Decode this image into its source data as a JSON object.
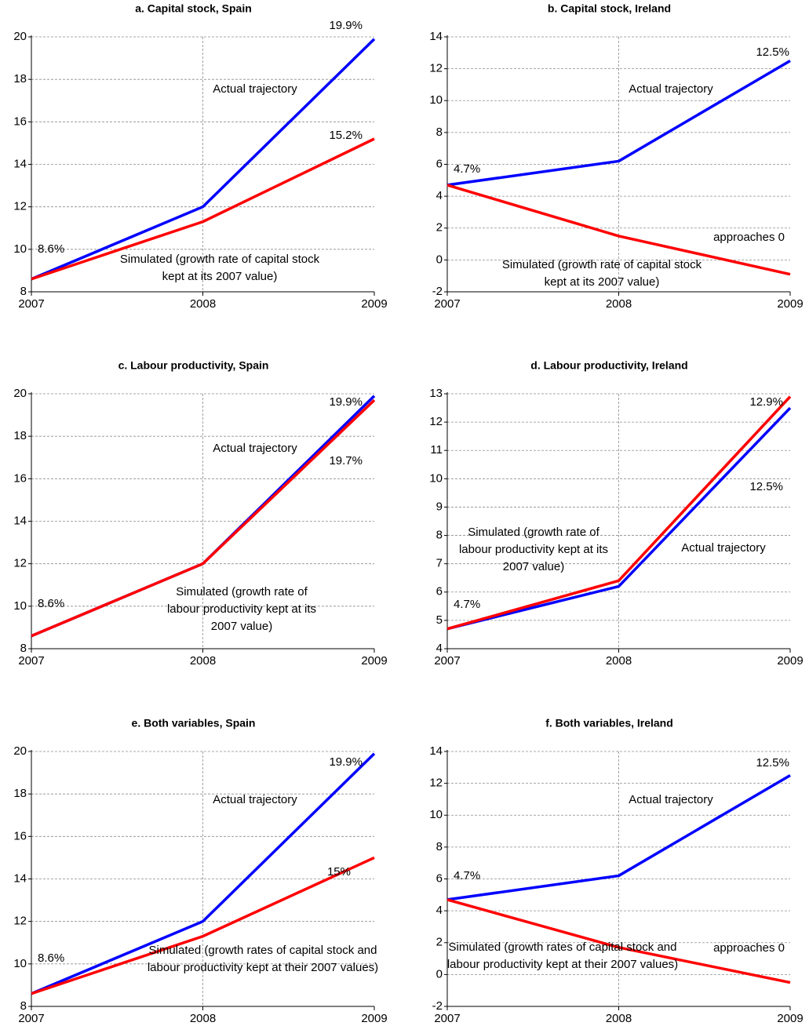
{
  "chart_data": [
    {
      "type": "line",
      "title": "a. Capital stock, Spain",
      "categories": [
        "2007",
        "2008",
        "2009"
      ],
      "ylim": [
        8,
        20
      ],
      "yticks": [
        8,
        10,
        12,
        14,
        16,
        18,
        20
      ],
      "grid": true,
      "series": [
        {
          "name": "Actual trajectory",
          "color": "#0000ff",
          "values": [
            8.6,
            12.0,
            19.9
          ],
          "value_labels": [
            "8.6%",
            null,
            "19.9%"
          ]
        },
        {
          "name": "Simulated (growth rate of capital stock kept at its 2007 value)",
          "color": "#ff0000",
          "values": [
            8.6,
            11.3,
            15.2
          ],
          "value_labels": [
            null,
            null,
            "15.2%"
          ]
        }
      ]
    },
    {
      "type": "line",
      "title": "b. Capital stock, Ireland",
      "categories": [
        "2007",
        "2008",
        "2009"
      ],
      "ylim": [
        -2,
        14
      ],
      "yticks": [
        -2,
        0,
        2,
        4,
        6,
        8,
        10,
        12,
        14
      ],
      "grid": true,
      "series": [
        {
          "name": "Actual trajectory",
          "color": "#0000ff",
          "values": [
            4.7,
            6.2,
            12.5
          ],
          "value_labels": [
            "4.7%",
            null,
            "12.5%"
          ]
        },
        {
          "name": "Simulated (growth rate of capital stock kept at its 2007 value)",
          "color": "#ff0000",
          "values": [
            4.7,
            1.5,
            -0.9
          ]
        }
      ],
      "annotations": [
        "approaches 0"
      ]
    },
    {
      "type": "line",
      "title": "c. Labour productivity, Spain",
      "categories": [
        "2007",
        "2008",
        "2009"
      ],
      "ylim": [
        8,
        20
      ],
      "yticks": [
        8,
        10,
        12,
        14,
        16,
        18,
        20
      ],
      "grid": true,
      "series": [
        {
          "name": "Actual trajectory",
          "color": "#0000ff",
          "values": [
            8.6,
            12.0,
            19.9
          ],
          "value_labels": [
            "8.6%",
            null,
            "19.9%"
          ]
        },
        {
          "name": "Simulated (growth rate of labour productivity kept at its 2007 value)",
          "color": "#ff0000",
          "values": [
            8.6,
            12.0,
            19.7
          ],
          "value_labels": [
            null,
            null,
            "19.7%"
          ]
        }
      ]
    },
    {
      "type": "line",
      "title": "d. Labour productivity, Ireland",
      "categories": [
        "2007",
        "2008",
        "2009"
      ],
      "ylim": [
        4,
        13
      ],
      "yticks": [
        4,
        5,
        6,
        7,
        8,
        9,
        10,
        11,
        12,
        13
      ],
      "grid": true,
      "series": [
        {
          "name": "Actual trajectory",
          "color": "#0000ff",
          "values": [
            4.7,
            6.2,
            12.5
          ],
          "value_labels": [
            "4.7%",
            null,
            "12.5%"
          ]
        },
        {
          "name": "Simulated (growth rate of labour productivity kept at its 2007 value)",
          "color": "#ff0000",
          "values": [
            4.7,
            6.4,
            12.9
          ],
          "value_labels": [
            null,
            null,
            "12.9%"
          ]
        }
      ]
    },
    {
      "type": "line",
      "title": "e. Both variables, Spain",
      "categories": [
        "2007",
        "2008",
        "2009"
      ],
      "ylim": [
        8,
        20
      ],
      "yticks": [
        8,
        10,
        12,
        14,
        16,
        18,
        20
      ],
      "grid": true,
      "series": [
        {
          "name": "Actual trajectory",
          "color": "#0000ff",
          "values": [
            8.6,
            12.0,
            19.9
          ],
          "value_labels": [
            "8.6%",
            null,
            "19.9%"
          ]
        },
        {
          "name": "Simulated (growth rates of capital stock and labour productivity kept at their 2007 values)",
          "color": "#ff0000",
          "values": [
            8.6,
            11.3,
            15.0
          ],
          "value_labels": [
            null,
            null,
            "15%"
          ]
        }
      ]
    },
    {
      "type": "line",
      "title": "f. Both variables, Ireland",
      "categories": [
        "2007",
        "2008",
        "2009"
      ],
      "ylim": [
        -2,
        14
      ],
      "yticks": [
        -2,
        0,
        2,
        4,
        6,
        8,
        10,
        12,
        14
      ],
      "grid": true,
      "series": [
        {
          "name": "Actual trajectory",
          "color": "#0000ff",
          "values": [
            4.7,
            6.2,
            12.5
          ],
          "value_labels": [
            "4.7%",
            null,
            "12.5%"
          ]
        },
        {
          "name": "Simulated (growth rates of capital stock and labour productivity kept at their 2007 values)",
          "color": "#ff0000",
          "values": [
            4.7,
            1.7,
            -0.5
          ]
        }
      ],
      "annotations": [
        "approaches 0"
      ]
    }
  ]
}
